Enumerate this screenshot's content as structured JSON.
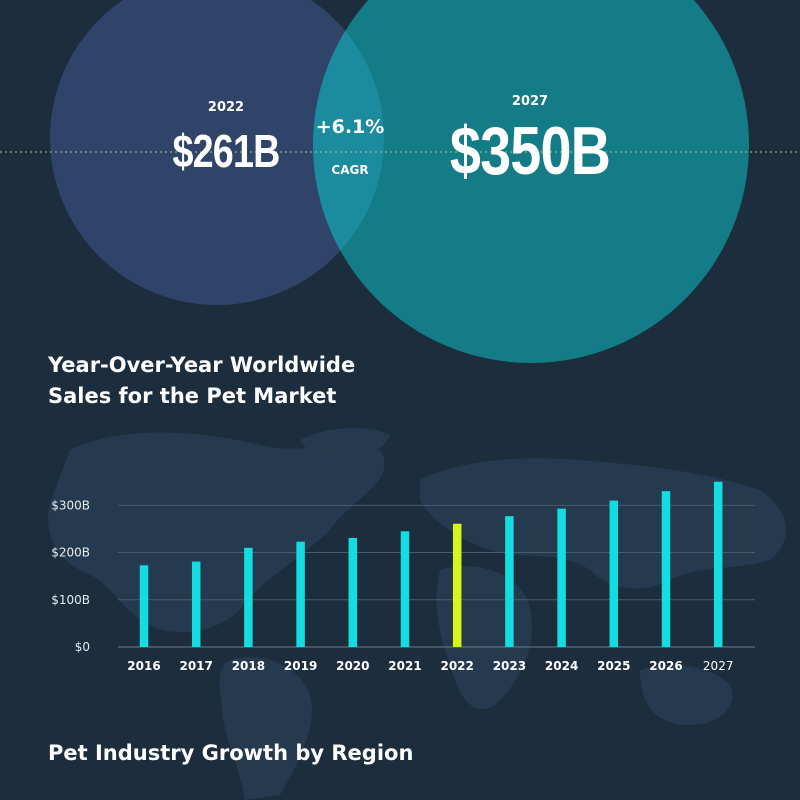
{
  "colors": {
    "background": "#1c2d3e",
    "bubble_left": "#2f4468",
    "bubble_right": "#137c86",
    "bubble_overlap": "#1b8b9f",
    "bar": "#13dde1",
    "bar_highlight": "#d5f51c",
    "dotted_line": "#9fd16d"
  },
  "bubbles": {
    "left": {
      "year": "2022",
      "value": "$261B"
    },
    "cagr": {
      "value": "+6.1%",
      "label": "CAGR"
    },
    "right": {
      "year": "2027",
      "value": "$350B"
    }
  },
  "titles": {
    "chart_title_line1": "Year-Over-Year Worldwide",
    "chart_title_line2": "Sales for the Pet Market",
    "section_title": "Pet Industry Growth by Region"
  },
  "chart_data": {
    "type": "bar",
    "title": "Year-Over-Year Worldwide Sales for the Pet Market",
    "xlabel": "",
    "ylabel": "",
    "categories": [
      "2016",
      "2017",
      "2018",
      "2019",
      "2020",
      "2021",
      "2022",
      "2023",
      "2024",
      "2025",
      "2026",
      "2027"
    ],
    "values": [
      173,
      181,
      210,
      223,
      231,
      245,
      261,
      277,
      293,
      310,
      330,
      350
    ],
    "highlight_category": "2022",
    "y_ticks": [
      {
        "value": 0,
        "label": "$0"
      },
      {
        "value": 100,
        "label": "$100B"
      },
      {
        "value": 200,
        "label": "$200B"
      },
      {
        "value": 300,
        "label": "$300B"
      }
    ],
    "ylim": [
      0,
      360
    ],
    "grid": true,
    "legend": "none"
  }
}
